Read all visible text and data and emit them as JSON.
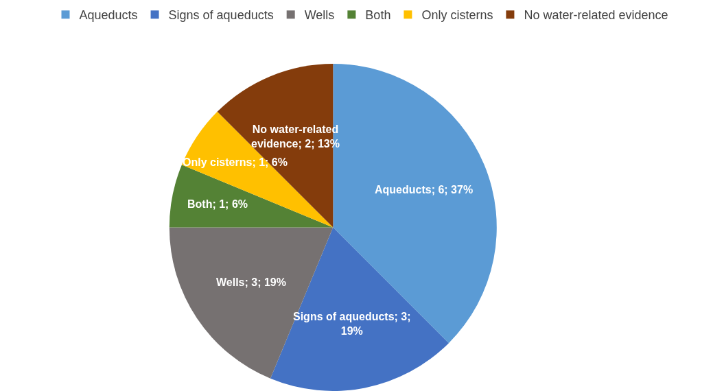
{
  "chart_data": {
    "type": "pie",
    "categories": [
      "Aqueducts",
      "Signs of aqueducts",
      "Wells",
      "Both",
      "Only cisterns",
      "No water-related evidence"
    ],
    "values": [
      6,
      3,
      3,
      1,
      1,
      2
    ],
    "colors": [
      "#5b9bd5",
      "#4472c4",
      "#767171",
      "#548235",
      "#ffc000",
      "#843c0c"
    ],
    "value_labels": [
      "Aqueducts; 6; 37%",
      "Signs of aqueducts; 3;\n19%",
      "Wells; 3; 19%",
      "Both; 1; 6%",
      "Only cisterns; 1; 6%",
      "No water-related\nevidence; 2; 13%"
    ],
    "legend": "top"
  }
}
